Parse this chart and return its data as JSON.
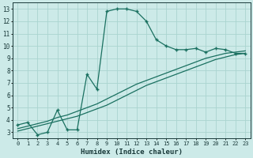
{
  "xlabel": "Humidex (Indice chaleur)",
  "bg_color": "#cceae8",
  "grid_color": "#aad4d0",
  "line_color": "#1a7060",
  "xlim": [
    -0.5,
    23.5
  ],
  "ylim": [
    2.5,
    13.5
  ],
  "xticks": [
    0,
    1,
    2,
    3,
    4,
    5,
    6,
    7,
    8,
    9,
    10,
    11,
    12,
    13,
    14,
    15,
    16,
    17,
    18,
    19,
    20,
    21,
    22,
    23
  ],
  "yticks": [
    3,
    4,
    5,
    6,
    7,
    8,
    9,
    10,
    11,
    12,
    13
  ],
  "curve1_x": [
    0,
    1,
    2,
    3,
    4,
    5,
    6,
    7,
    8,
    9,
    10,
    11,
    12,
    13,
    14,
    15,
    16,
    17,
    18,
    19,
    20,
    21,
    22,
    23
  ],
  "curve1_y": [
    3.6,
    3.8,
    2.8,
    3.0,
    4.8,
    3.2,
    3.2,
    7.7,
    6.5,
    12.8,
    13.0,
    13.0,
    12.8,
    12.0,
    10.5,
    10.0,
    9.7,
    9.7,
    9.8,
    9.5,
    9.8,
    9.7,
    9.4,
    9.4
  ],
  "curve2_x": [
    0,
    1,
    2,
    3,
    4,
    5,
    6,
    7,
    8,
    9,
    10,
    11,
    12,
    13,
    14,
    15,
    16,
    17,
    18,
    19,
    20,
    21,
    22,
    23
  ],
  "curve2_y": [
    3.1,
    3.3,
    3.5,
    3.7,
    3.9,
    4.1,
    4.3,
    4.6,
    4.9,
    5.2,
    5.6,
    6.0,
    6.4,
    6.8,
    7.1,
    7.4,
    7.7,
    8.0,
    8.3,
    8.6,
    8.9,
    9.1,
    9.3,
    9.4
  ],
  "curve3_x": [
    0,
    1,
    2,
    3,
    4,
    5,
    6,
    7,
    8,
    9,
    10,
    11,
    12,
    13,
    14,
    15,
    16,
    17,
    18,
    19,
    20,
    21,
    22,
    23
  ],
  "curve3_y": [
    3.3,
    3.5,
    3.7,
    3.9,
    4.2,
    4.4,
    4.7,
    5.0,
    5.3,
    5.7,
    6.1,
    6.5,
    6.9,
    7.2,
    7.5,
    7.8,
    8.1,
    8.4,
    8.7,
    9.0,
    9.2,
    9.4,
    9.5,
    9.6
  ]
}
